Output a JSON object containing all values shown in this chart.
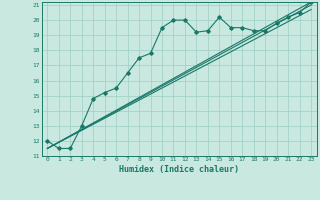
{
  "title": "",
  "xlabel": "Humidex (Indice chaleur)",
  "bg_color": "#c8e8e0",
  "grid_color": "#9ecec4",
  "line_color": "#1a7868",
  "xlim": [
    -0.5,
    23.5
  ],
  "ylim": [
    11,
    21.2
  ],
  "x_ticks": [
    0,
    1,
    2,
    3,
    4,
    5,
    6,
    7,
    8,
    9,
    10,
    11,
    12,
    13,
    14,
    15,
    16,
    17,
    18,
    19,
    20,
    21,
    22,
    23
  ],
  "y_ticks": [
    11,
    12,
    13,
    14,
    15,
    16,
    17,
    18,
    19,
    20,
    21
  ],
  "series1_x": [
    0,
    1,
    2,
    3,
    4,
    5,
    6,
    7,
    8,
    9,
    10,
    11,
    12,
    13,
    14,
    15,
    16,
    17,
    18,
    19,
    20,
    21,
    22,
    23
  ],
  "series1_y": [
    12.0,
    11.5,
    11.5,
    13.0,
    14.8,
    15.2,
    15.5,
    16.5,
    17.5,
    17.8,
    19.5,
    20.0,
    20.0,
    19.2,
    19.3,
    20.2,
    19.5,
    19.5,
    19.3,
    19.3,
    19.8,
    20.2,
    20.5,
    21.2
  ],
  "series2_x": [
    0,
    23
  ],
  "series2_y": [
    11.5,
    21.2
  ],
  "series3_x": [
    0,
    23
  ],
  "series3_y": [
    11.5,
    21.0
  ],
  "series4_x": [
    0,
    23
  ],
  "series4_y": [
    11.5,
    20.7
  ]
}
